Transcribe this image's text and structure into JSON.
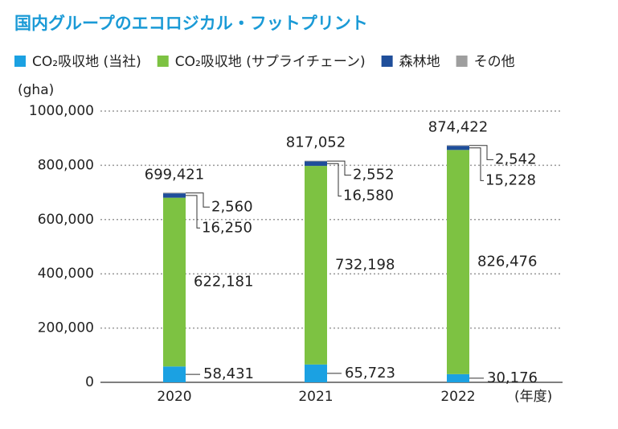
{
  "chart_data": {
    "type": "stacked_bar",
    "title": "国内グループのエコロジカル・フットプリント",
    "y_label": "(gha)",
    "x_unit": "(年度)",
    "categories": [
      "2020",
      "2021",
      "2022"
    ],
    "series": [
      {
        "name": "CO₂吸収地 (当社)",
        "color": "#1ba1e2",
        "values": [
          58431,
          65723,
          30176
        ],
        "value_labels": [
          "58,431",
          "65,723",
          "30,176"
        ]
      },
      {
        "name": "CO₂吸収地 (サプライチェーン)",
        "color": "#7dc242",
        "values": [
          622181,
          732198,
          826476
        ],
        "value_labels": [
          "622,181",
          "732,198",
          "826,476"
        ]
      },
      {
        "name": "森林地",
        "color": "#1f4e9a",
        "values": [
          16250,
          16580,
          15228
        ],
        "value_labels": [
          "16,250",
          "16,580",
          "15,228"
        ]
      },
      {
        "name": "その他",
        "color": "#9e9e9e",
        "values": [
          2560,
          2552,
          2542
        ],
        "value_labels": [
          "2,560",
          "2,552",
          "2,542"
        ]
      }
    ],
    "totals": [
      699421,
      817052,
      874422
    ],
    "total_labels": [
      "699,421",
      "817,052",
      "874,422"
    ],
    "ylim": [
      0,
      1000000
    ],
    "yticks": [
      0,
      {
        "value": 200000,
        "label": "200,000"
      },
      {
        "value": 400000,
        "label": "400,000"
      },
      {
        "value": 600000,
        "label": "600,000"
      },
      {
        "value": 800000,
        "label": "800,000"
      },
      {
        "value": 1000000,
        "label": "1000,000"
      }
    ],
    "grid": true
  }
}
